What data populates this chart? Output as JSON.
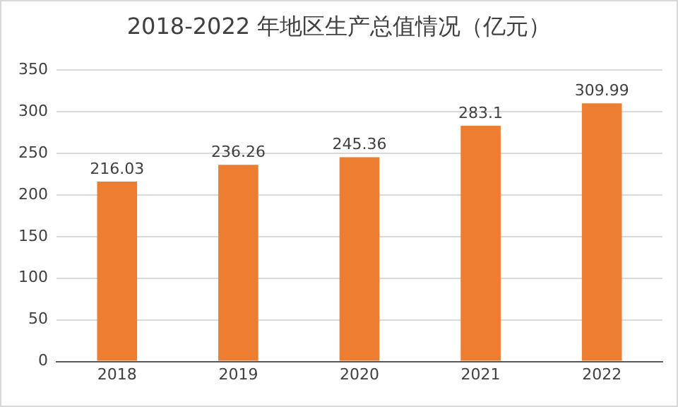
{
  "chart_data": {
    "type": "bar",
    "title": "2018-2022 年地区生产总值情况（亿元）",
    "categories": [
      "2018",
      "2019",
      "2020",
      "2021",
      "2022"
    ],
    "values": [
      216.03,
      236.26,
      245.36,
      283.1,
      309.99
    ],
    "color": "#ed7d31",
    "ylim": [
      0,
      350
    ],
    "yticks": [
      0,
      50,
      100,
      150,
      200,
      250,
      300,
      350
    ],
    "grid": "y",
    "data_labels": true,
    "legend": false
  }
}
